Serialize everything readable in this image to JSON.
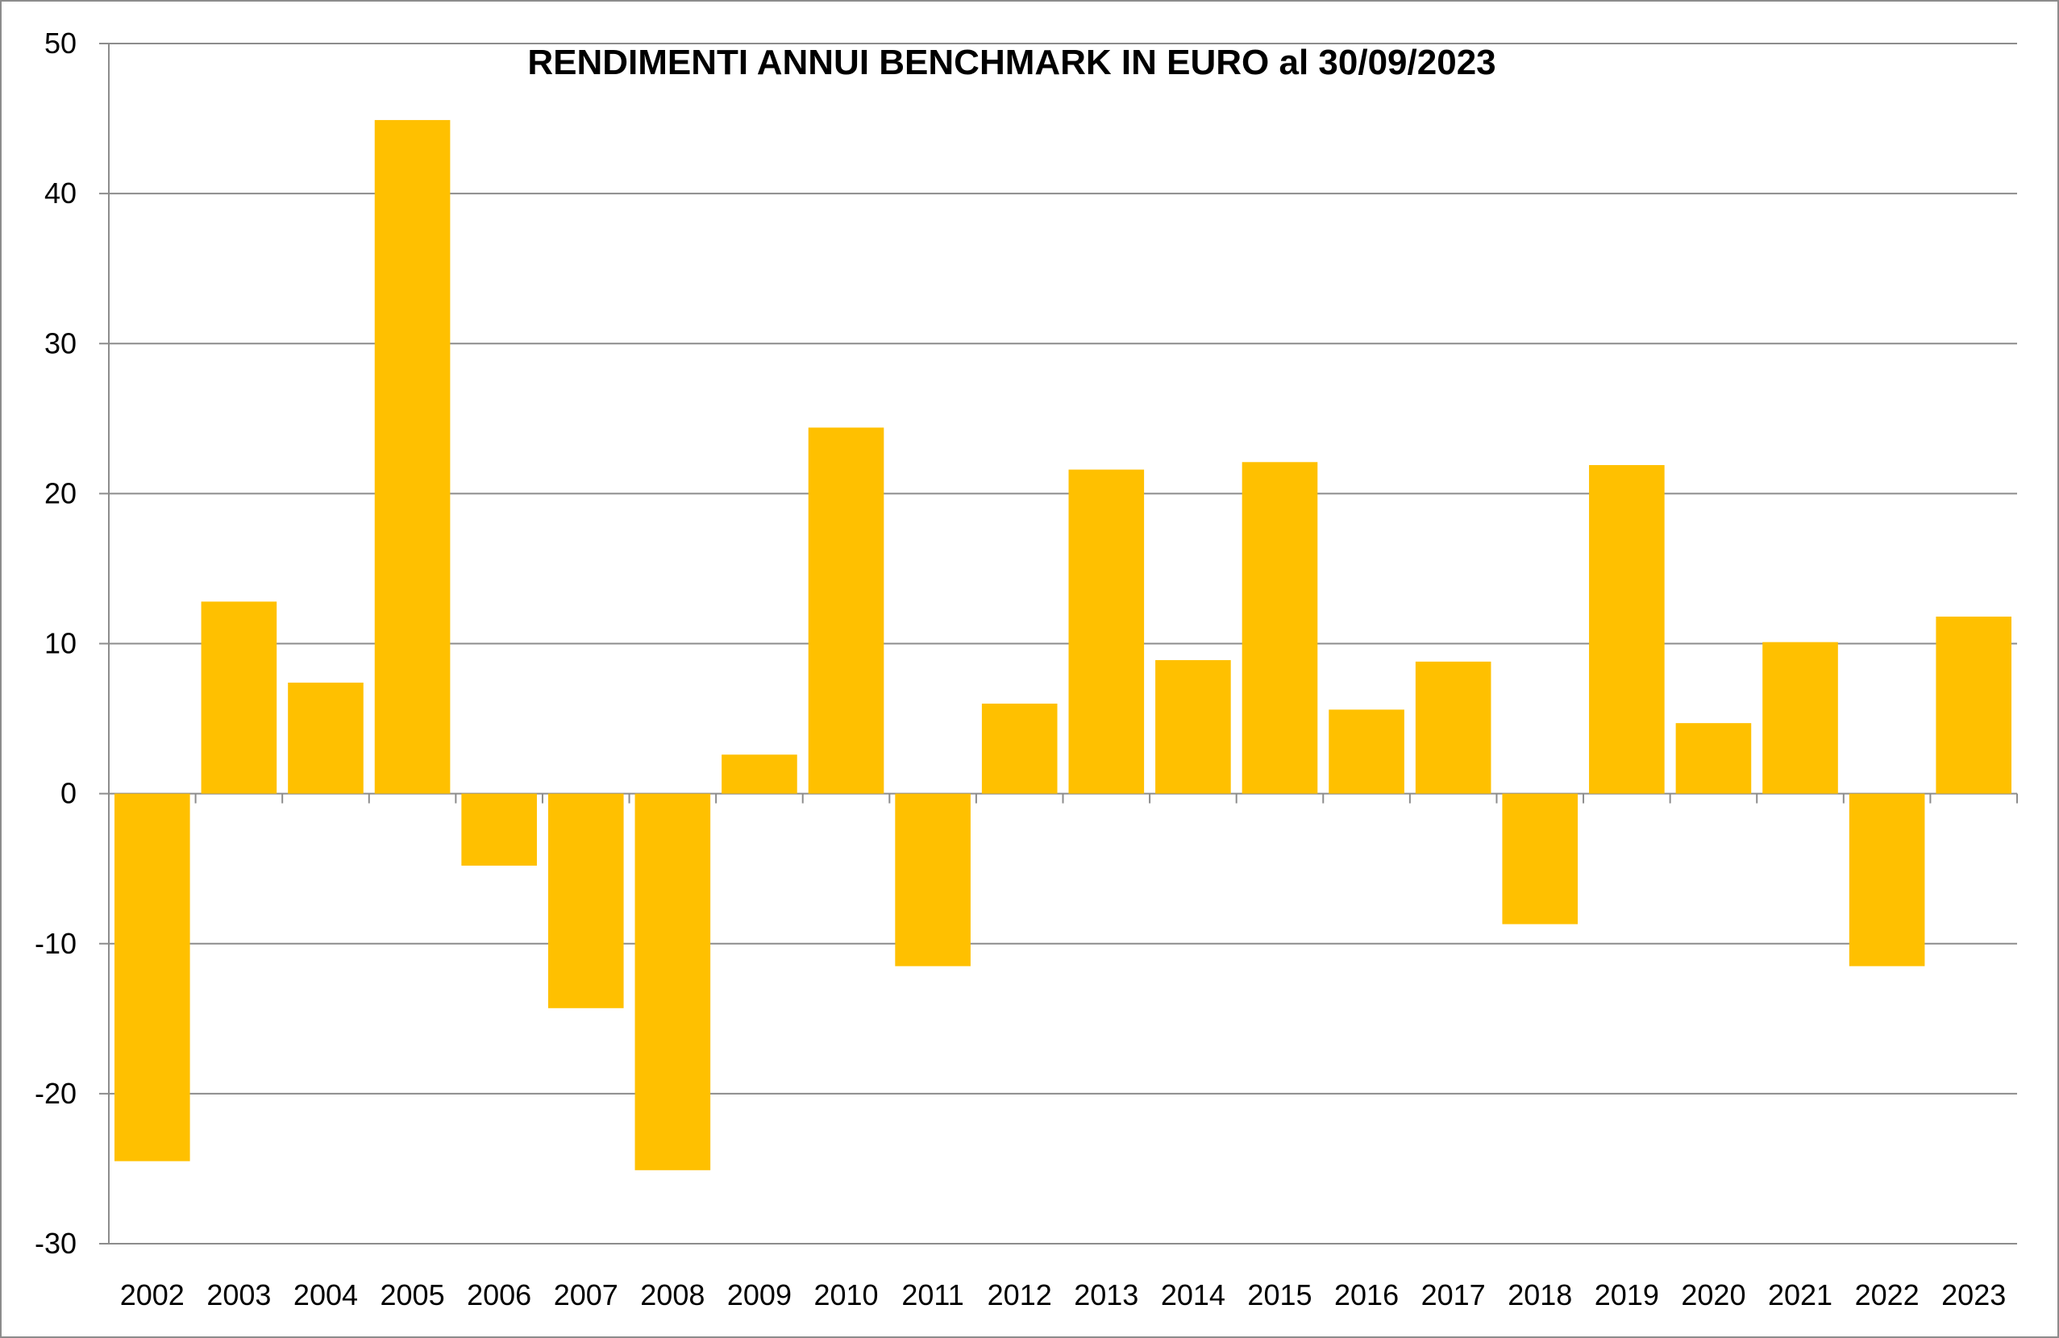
{
  "chart_data": {
    "type": "bar",
    "title": "RENDIMENTI ANNUI BENCHMARK IN EURO al 30/09/2023",
    "xlabel": "",
    "ylabel": "",
    "ylim": [
      -30,
      50
    ],
    "yticks": [
      50,
      40,
      30,
      20,
      10,
      0,
      -10,
      -20,
      -30
    ],
    "grid": true,
    "legend": "none",
    "bar_color": "#FFC000",
    "categories": [
      "2002",
      "2003",
      "2004",
      "2005",
      "2006",
      "2007",
      "2008",
      "2009",
      "2010",
      "2011",
      "2012",
      "2013",
      "2014",
      "2015",
      "2016",
      "2017",
      "2018",
      "2019",
      "2020",
      "2021",
      "2022",
      "2023"
    ],
    "values": [
      -24.5,
      12.8,
      7.4,
      44.9,
      -4.8,
      -14.3,
      -25.1,
      2.6,
      24.4,
      -11.5,
      6.0,
      21.6,
      8.9,
      22.1,
      5.6,
      8.8,
      -8.7,
      21.9,
      4.7,
      10.1,
      -11.5,
      11.8
    ]
  }
}
